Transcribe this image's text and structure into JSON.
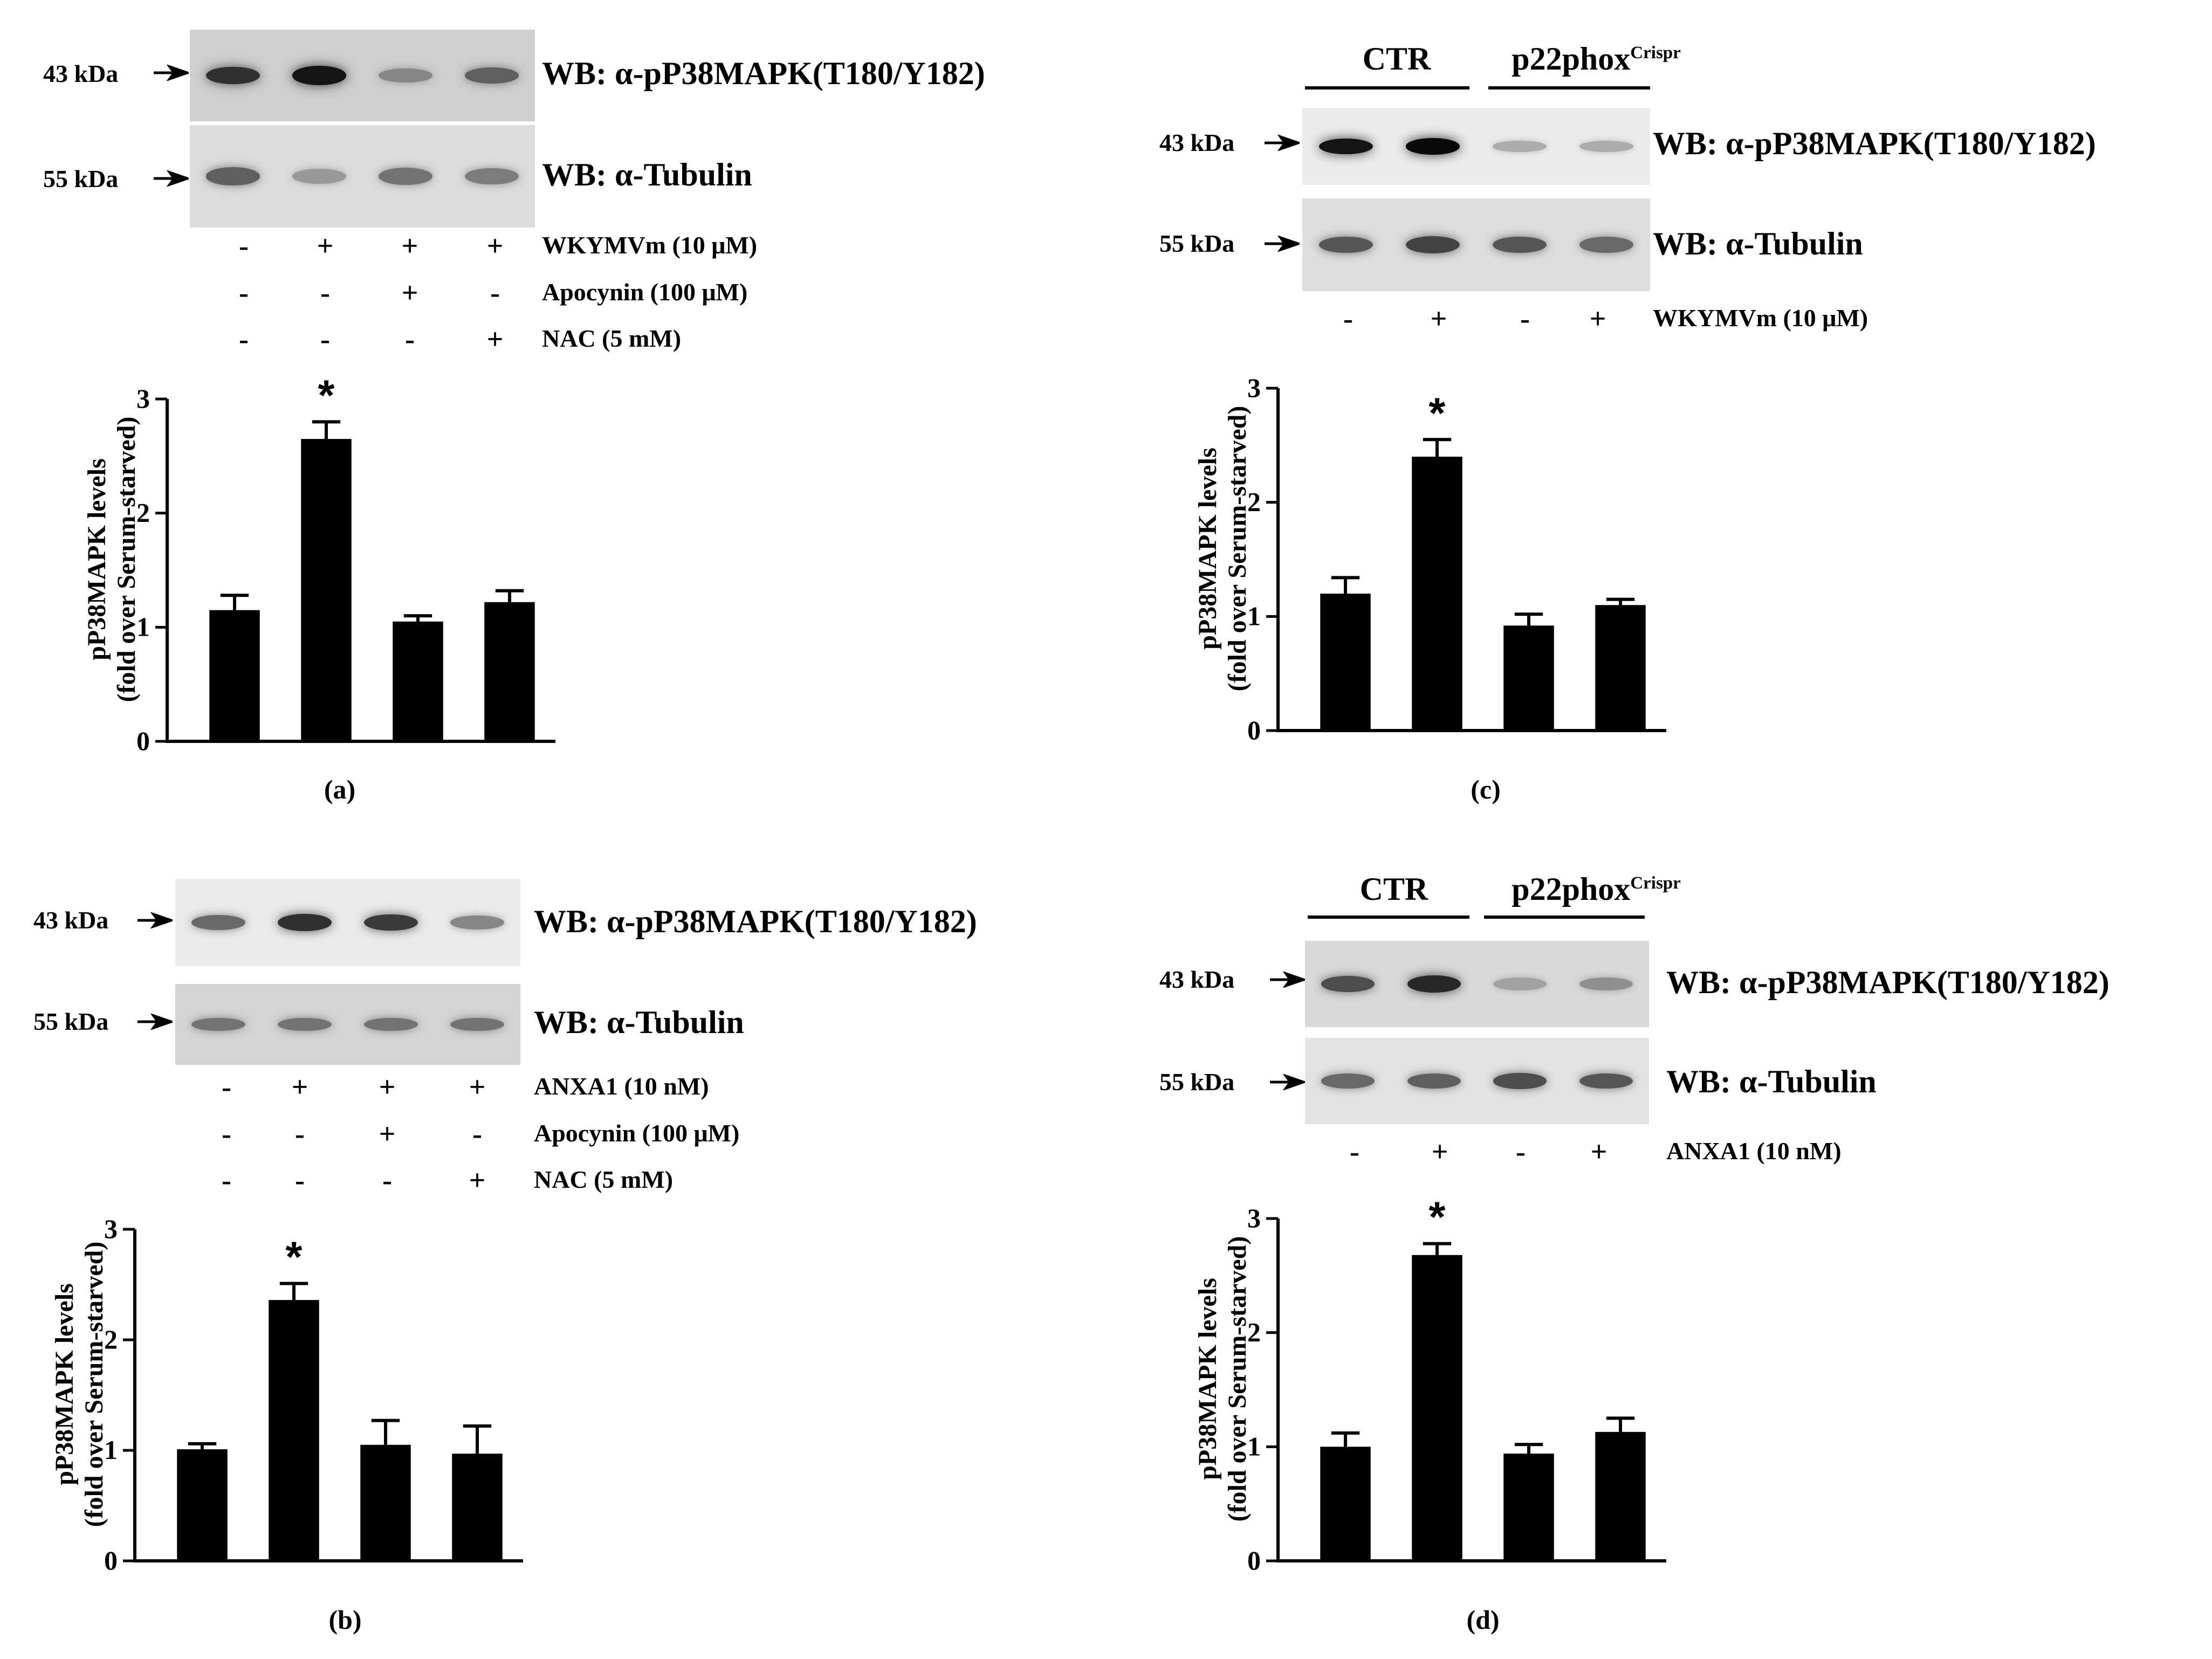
{
  "panels": [
    {
      "id": "a",
      "label": "(a)",
      "blots": [
        {
          "marker": "43 kDa",
          "antibody": "WB: α-pP38MAPK(T180/Y182)",
          "intensity": [
            0.8,
            0.95,
            0.35,
            0.55
          ]
        },
        {
          "marker": "55 kDa",
          "antibody": "WB: α-Tubulin",
          "intensity": [
            0.55,
            0.25,
            0.45,
            0.4
          ]
        }
      ],
      "treatments": [
        {
          "label": "WKYMVm (10 μM)",
          "signs": [
            "-",
            "+",
            "+",
            "+"
          ]
        },
        {
          "label": "Apocynin (100 μM)",
          "signs": [
            "-",
            "-",
            "+",
            "-"
          ]
        },
        {
          "label": "NAC (5 mM)",
          "signs": [
            "-",
            "-",
            "-",
            "+"
          ]
        }
      ],
      "groups": []
    },
    {
      "id": "b",
      "label": "(b)",
      "blots": [
        {
          "marker": "43 kDa",
          "antibody": "WB: α-pP38MAPK(T180/Y182)",
          "intensity": [
            0.5,
            0.8,
            0.75,
            0.35
          ]
        },
        {
          "marker": "55 kDa",
          "antibody": "WB: α-Tubulin",
          "intensity": [
            0.45,
            0.45,
            0.45,
            0.45
          ]
        }
      ],
      "treatments": [
        {
          "label": "ANXA1 (10 nM)",
          "signs": [
            "-",
            "+",
            "+",
            "+"
          ]
        },
        {
          "label": "Apocynin (100 μM)",
          "signs": [
            "-",
            "-",
            "+",
            "-"
          ]
        },
        {
          "label": "NAC (5 mM)",
          "signs": [
            "-",
            "-",
            "-",
            "+"
          ]
        }
      ],
      "groups": []
    },
    {
      "id": "c",
      "label": "(c)",
      "blots": [
        {
          "marker": "43 kDa",
          "antibody": "WB: α-pP38MAPK(T180/Y182)",
          "intensity": [
            0.95,
            1.0,
            0.15,
            0.15
          ]
        },
        {
          "marker": "55 kDa",
          "antibody": "WB: α-Tubulin",
          "intensity": [
            0.6,
            0.7,
            0.6,
            0.5
          ]
        }
      ],
      "treatments": [
        {
          "label": "WKYMVm (10 μM)",
          "signs": [
            "-",
            "+",
            "-",
            "+"
          ]
        }
      ],
      "groups": [
        {
          "label": "CTR",
          "sup": ""
        },
        {
          "label": "p22phox",
          "sup": "Crispr"
        }
      ]
    },
    {
      "id": "d",
      "label": "(d)",
      "blots": [
        {
          "marker": "43 kDa",
          "antibody": "WB: α-pP38MAPK(T180/Y182)",
          "intensity": [
            0.65,
            0.85,
            0.2,
            0.3
          ]
        },
        {
          "marker": "55 kDa",
          "antibody": "WB: α-Tubulin",
          "intensity": [
            0.5,
            0.55,
            0.65,
            0.6
          ]
        }
      ],
      "treatments": [
        {
          "label": "ANXA1 (10 nM)",
          "signs": [
            "-",
            "+",
            "-",
            "+"
          ]
        }
      ],
      "groups": [
        {
          "label": "CTR",
          "sup": ""
        },
        {
          "label": "p22phox",
          "sup": "Crispr"
        }
      ]
    }
  ],
  "chart_data": [
    {
      "panel": "a",
      "type": "bar",
      "ylabel": [
        "pP38MAPK levels",
        "(fold over Serum-starved)"
      ],
      "ylim": [
        0,
        3
      ],
      "yticks": [
        0,
        1,
        2,
        3
      ],
      "values": [
        1.15,
        2.65,
        1.05,
        1.22
      ],
      "errors": [
        0.13,
        0.15,
        0.05,
        0.1
      ],
      "significance": [
        "",
        "*",
        "",
        ""
      ]
    },
    {
      "panel": "b",
      "type": "bar",
      "ylabel": [
        "pP38MAPK levels",
        "(fold over Serum-starved)"
      ],
      "ylim": [
        0,
        3
      ],
      "yticks": [
        0,
        1,
        2,
        3
      ],
      "values": [
        1.01,
        2.36,
        1.05,
        0.97
      ],
      "errors": [
        0.05,
        0.15,
        0.22,
        0.25
      ],
      "significance": [
        "",
        "*",
        "",
        ""
      ]
    },
    {
      "panel": "c",
      "type": "bar",
      "ylabel": [
        "pP38MAPK levels",
        "(fold over Serum-starved)"
      ],
      "ylim": [
        0,
        3
      ],
      "yticks": [
        0,
        1,
        2,
        3
      ],
      "values": [
        1.2,
        2.4,
        0.92,
        1.1
      ],
      "errors": [
        0.14,
        0.15,
        0.1,
        0.05
      ],
      "significance": [
        "",
        "*",
        "",
        ""
      ]
    },
    {
      "panel": "d",
      "type": "bar",
      "ylabel": [
        "pP38MAPK levels",
        "(fold over Serum-starved)"
      ],
      "ylim": [
        0,
        3
      ],
      "yticks": [
        0,
        1,
        2,
        3
      ],
      "values": [
        1.0,
        2.68,
        0.94,
        1.13
      ],
      "errors": [
        0.12,
        0.1,
        0.08,
        0.12
      ],
      "significance": [
        "",
        "*",
        "",
        ""
      ]
    }
  ]
}
